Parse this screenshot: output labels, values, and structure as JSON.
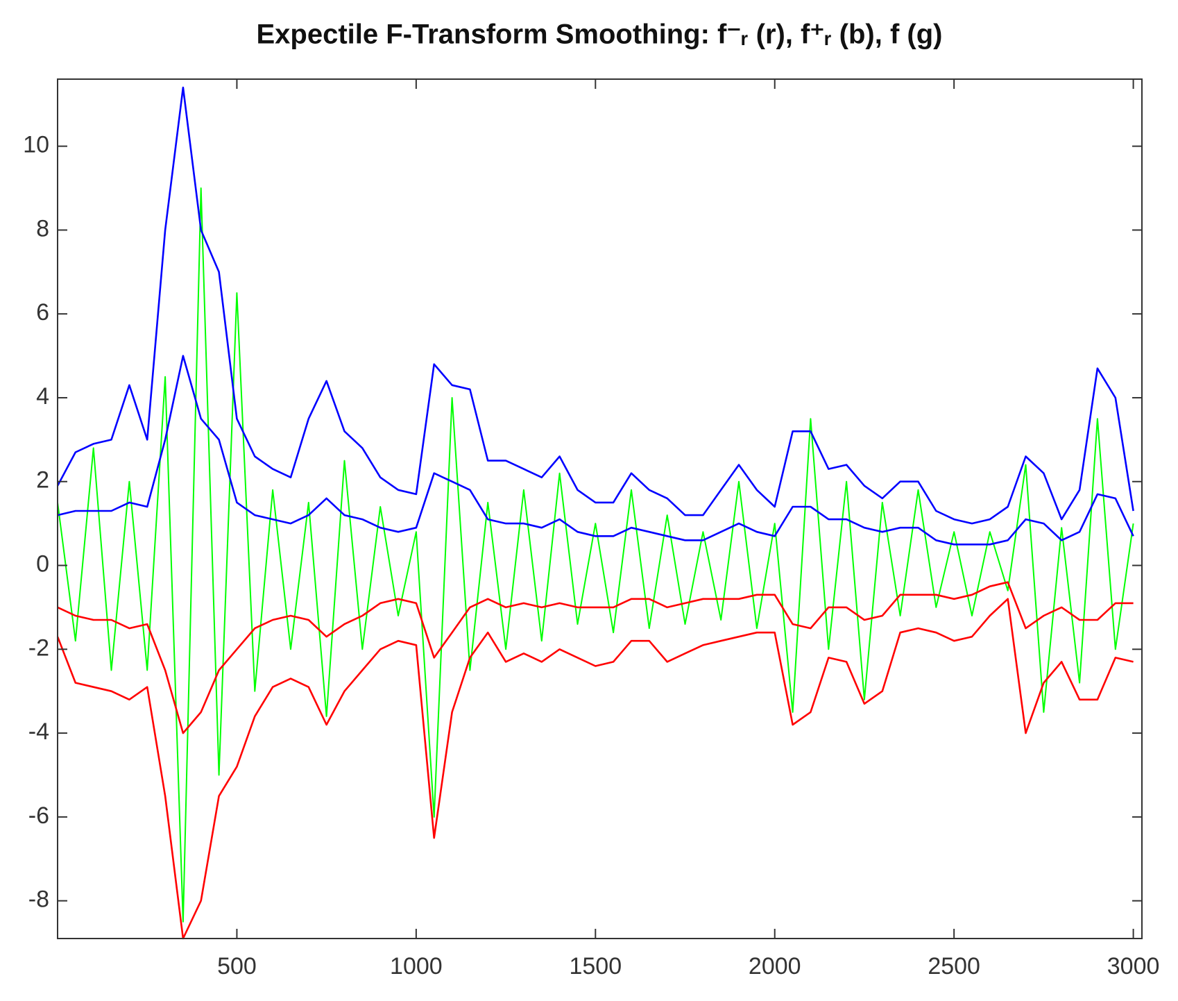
{
  "chart_data": {
    "type": "line",
    "title": "Expectile F-Transform Smoothing: f⁻ᵣ (r), f⁺ᵣ (b), f (g)",
    "x": [
      0,
      50,
      100,
      150,
      200,
      250,
      300,
      350,
      400,
      450,
      500,
      550,
      600,
      650,
      700,
      750,
      800,
      850,
      900,
      950,
      1000,
      1050,
      1100,
      1150,
      1200,
      1250,
      1300,
      1350,
      1400,
      1450,
      1500,
      1550,
      1600,
      1650,
      1700,
      1750,
      1800,
      1850,
      1900,
      1950,
      2000,
      2050,
      2100,
      2150,
      2200,
      2250,
      2300,
      2350,
      2400,
      2450,
      2500,
      2550,
      2600,
      2650,
      2700,
      2750,
      2800,
      2850,
      2900,
      2950,
      3000
    ],
    "series": [
      {
        "color": "#00ff00",
        "values": [
          1.5,
          -1.8,
          2.8,
          -2.5,
          2.0,
          -2.5,
          4.5,
          -8.5,
          9.0,
          -5.0,
          6.5,
          -3.0,
          1.8,
          -2.0,
          1.5,
          -3.6,
          2.5,
          -2.0,
          1.4,
          -1.2,
          0.8,
          -6.0,
          4.0,
          -2.5,
          1.5,
          -2.0,
          1.8,
          -1.8,
          2.2,
          -1.4,
          1.0,
          -1.6,
          1.8,
          -1.5,
          1.2,
          -1.4,
          0.8,
          -1.3,
          2.0,
          -1.5,
          1.0,
          -3.5,
          3.5,
          -2.0,
          2.0,
          -3.2,
          1.5,
          -1.2,
          1.8,
          -1.0,
          0.8,
          -1.2,
          0.8,
          -0.6,
          2.4,
          -3.5,
          0.9,
          -2.8,
          3.5,
          -2.0,
          1.0
        ]
      },
      {
        "color": "#0000ff",
        "values": [
          1.2,
          1.3,
          1.3,
          1.3,
          1.5,
          1.4,
          3.0,
          5.0,
          3.5,
          3.0,
          1.5,
          1.2,
          1.1,
          1.0,
          1.2,
          1.6,
          1.2,
          1.1,
          0.9,
          0.8,
          0.9,
          2.2,
          2.0,
          1.8,
          1.1,
          1.0,
          1.0,
          0.9,
          1.1,
          0.8,
          0.7,
          0.7,
          0.9,
          0.8,
          0.7,
          0.6,
          0.6,
          0.8,
          1.0,
          0.8,
          0.7,
          1.4,
          1.4,
          1.1,
          1.1,
          0.9,
          0.8,
          0.9,
          0.9,
          0.6,
          0.5,
          0.5,
          0.5,
          0.6,
          1.1,
          1.0,
          0.6,
          0.8,
          1.7,
          1.6,
          0.7
        ]
      },
      {
        "color": "#ff0000",
        "values": [
          -1.0,
          -1.2,
          -1.3,
          -1.3,
          -1.5,
          -1.4,
          -2.5,
          -4.0,
          -3.5,
          -2.5,
          -2.0,
          -1.5,
          -1.3,
          -1.2,
          -1.3,
          -1.7,
          -1.4,
          -1.2,
          -0.9,
          -0.8,
          -0.9,
          -2.2,
          -1.6,
          -1.0,
          -0.8,
          -1.0,
          -0.9,
          -1.0,
          -0.9,
          -1.0,
          -1.0,
          -1.0,
          -0.8,
          -0.8,
          -1.0,
          -0.9,
          -0.8,
          -0.8,
          -0.8,
          -0.7,
          -0.7,
          -1.4,
          -1.5,
          -1.0,
          -1.0,
          -1.3,
          -1.2,
          -0.7,
          -0.7,
          -0.7,
          -0.8,
          -0.7,
          -0.5,
          -0.4,
          -1.5,
          -1.2,
          -1.0,
          -1.3,
          -1.3,
          -0.9,
          -0.9
        ]
      },
      {
        "color": "#0000ff",
        "values": [
          1.9,
          2.7,
          2.9,
          3.0,
          4.3,
          3.0,
          8.0,
          11.4,
          8.0,
          7.0,
          3.5,
          2.6,
          2.3,
          2.1,
          3.5,
          4.4,
          3.2,
          2.8,
          2.1,
          1.8,
          1.7,
          4.8,
          4.3,
          4.2,
          2.5,
          2.5,
          2.3,
          2.1,
          2.6,
          1.8,
          1.5,
          1.5,
          2.2,
          1.8,
          1.6,
          1.2,
          1.2,
          1.8,
          2.4,
          1.8,
          1.4,
          3.2,
          3.2,
          2.3,
          2.4,
          1.9,
          1.6,
          2.0,
          2.0,
          1.3,
          1.1,
          1.0,
          1.1,
          1.4,
          2.6,
          2.2,
          1.1,
          1.8,
          4.7,
          4.0,
          1.3
        ]
      },
      {
        "color": "#ff0000",
        "values": [
          -1.7,
          -2.8,
          -2.9,
          -3.0,
          -3.2,
          -2.9,
          -5.5,
          -8.9,
          -8.0,
          -5.5,
          -4.8,
          -3.6,
          -2.9,
          -2.7,
          -2.9,
          -3.8,
          -3.0,
          -2.5,
          -2.0,
          -1.8,
          -1.9,
          -6.5,
          -3.5,
          -2.2,
          -1.6,
          -2.3,
          -2.1,
          -2.3,
          -2.0,
          -2.2,
          -2.4,
          -2.3,
          -1.8,
          -1.8,
          -2.3,
          -2.1,
          -1.9,
          -1.8,
          -1.7,
          -1.6,
          -1.6,
          -3.8,
          -3.5,
          -2.2,
          -2.3,
          -3.3,
          -3.0,
          -1.6,
          -1.5,
          -1.6,
          -1.8,
          -1.7,
          -1.2,
          -0.8,
          -4.0,
          -2.8,
          -2.3,
          -3.2,
          -3.2,
          -2.2,
          -2.3
        ]
      }
    ],
    "xlim": [
      0,
      3024
    ],
    "ylim": [
      -8.9,
      11.6
    ],
    "xticks": [
      500,
      1000,
      1500,
      2000,
      2500,
      3000
    ],
    "yticks": [
      -8,
      -6,
      -4,
      -2,
      0,
      2,
      4,
      6,
      8,
      10
    ]
  }
}
